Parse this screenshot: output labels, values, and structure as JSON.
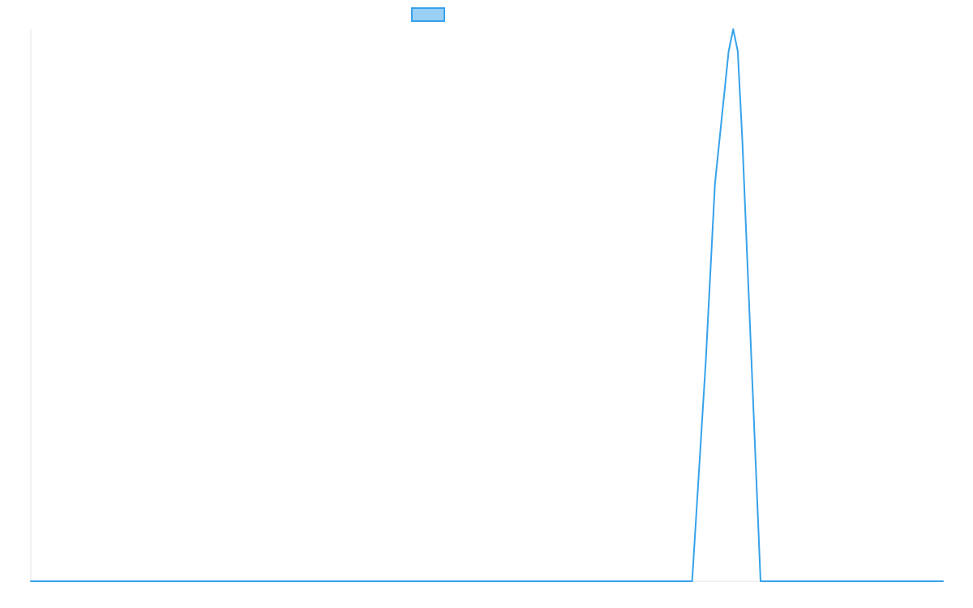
{
  "chart_data": {
    "type": "line",
    "title": "",
    "xlabel": "",
    "ylabel": "",
    "grid": false,
    "legend": {
      "placement": "top-center",
      "entries": [
        {
          "label": "",
          "color": "#36A2EB",
          "fill": "#9AD0F5"
        }
      ]
    },
    "xlim": [
      0,
      100
    ],
    "ylim": [
      0,
      100
    ],
    "series": [
      {
        "color": "#36A2EB",
        "x": [
          0,
          10,
          20,
          30,
          40,
          50,
          60,
          70,
          72.5,
          74,
          75,
          76,
          76.5,
          77,
          77.5,
          78,
          79,
          80,
          82,
          90,
          100
        ],
        "y": [
          0,
          0,
          0,
          0,
          0,
          0,
          0,
          0,
          0,
          40,
          72,
          88,
          96,
          100,
          96,
          80,
          40,
          0,
          0,
          0,
          0
        ]
      }
    ]
  }
}
